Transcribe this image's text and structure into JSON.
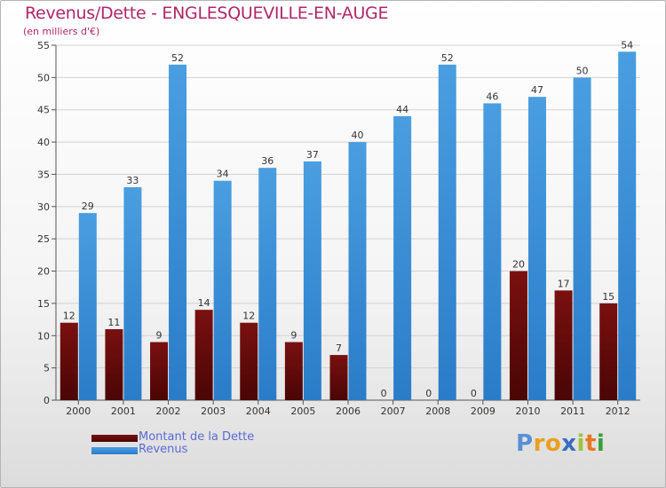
{
  "title": "Revenus/Dette - ENGLESQUEVILLE-EN-AUGE",
  "subtitle": "(en milliers d'€)",
  "colors": {
    "debt": "#7a1010",
    "debt_dark": "#4a0505",
    "revenue": "#4a9ee0",
    "revenue_dark": "#2a7cc8",
    "grid": "#d2d2d2",
    "title": "#b0276a",
    "legend_text": "#5a6ad8"
  },
  "legend": {
    "debt_label": "Montant de la Dette",
    "revenue_label": "Revenus"
  },
  "logo": {
    "letters": [
      "P",
      "r",
      "o",
      "x",
      "i",
      "t",
      "i"
    ],
    "colors": [
      "#5b8fd6",
      "#e8a020",
      "#e8a020",
      "#3a6cc0",
      "#9bc43c",
      "#e87820",
      "#3a9c3c"
    ]
  },
  "chart_data": {
    "type": "bar",
    "categories": [
      "2000",
      "2001",
      "2002",
      "2003",
      "2004",
      "2005",
      "2006",
      "2007",
      "2008",
      "2009",
      "2010",
      "2011",
      "2012"
    ],
    "series": [
      {
        "name": "Montant de la Dette",
        "values": [
          12,
          11,
          9,
          14,
          12,
          9,
          7,
          0,
          0,
          0,
          20,
          17,
          15
        ]
      },
      {
        "name": "Revenus",
        "values": [
          29,
          33,
          52,
          34,
          36,
          37,
          40,
          44,
          52,
          46,
          47,
          50,
          54
        ]
      }
    ],
    "yticks": [
      0,
      5,
      10,
      15,
      20,
      25,
      30,
      35,
      40,
      45,
      50,
      55
    ],
    "ylim": [
      0,
      55
    ],
    "title": "Revenus/Dette - ENGLESQUEVILLE-EN-AUGE",
    "ylabel": "(en milliers d'€)",
    "xlabel": "",
    "grid": true,
    "legend_position": "bottom-left"
  }
}
